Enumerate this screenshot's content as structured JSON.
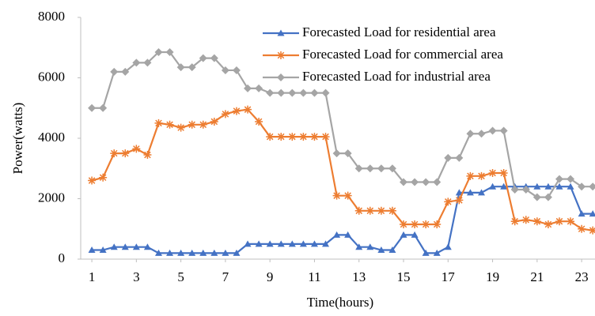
{
  "chart_data": {
    "type": "line",
    "x_label": "Time(hours)",
    "y_label": "Power(watts)",
    "x": [
      1,
      1.5,
      2,
      2.5,
      3,
      3.5,
      4,
      4.5,
      5,
      5.5,
      6,
      6.5,
      7,
      7.5,
      8,
      8.5,
      9,
      9.5,
      10,
      10.5,
      11,
      11.5,
      12,
      12.5,
      13,
      13.5,
      14,
      14.5,
      15,
      15.5,
      16,
      16.5,
      17,
      17.5,
      18,
      18.5,
      19,
      19.5,
      20,
      20.5,
      21,
      21.5,
      22,
      22.5,
      23,
      23.5
    ],
    "series": [
      {
        "name": "Forecasted Load for residential area",
        "color": "#4472c4",
        "marker": "triangle",
        "values": [
          300,
          300,
          400,
          400,
          400,
          400,
          200,
          200,
          200,
          200,
          200,
          200,
          200,
          200,
          500,
          500,
          500,
          500,
          500,
          500,
          500,
          500,
          800,
          800,
          400,
          400,
          300,
          300,
          800,
          800,
          200,
          200,
          400,
          2200,
          2200,
          2200,
          2400,
          2400,
          2400,
          2400,
          2400,
          2400,
          2400,
          2400,
          1500,
          1500
        ]
      },
      {
        "name": "Forecasted Load for commercial area",
        "color": "#ed7d31",
        "marker": "star",
        "values": [
          2600,
          2700,
          3500,
          3500,
          3650,
          3450,
          4500,
          4450,
          4350,
          4450,
          4450,
          4550,
          4800,
          4900,
          4950,
          4550,
          4050,
          4050,
          4050,
          4050,
          4050,
          4050,
          2100,
          2100,
          1600,
          1600,
          1600,
          1600,
          1150,
          1150,
          1150,
          1150,
          1900,
          1950,
          2750,
          2750,
          2850,
          2850,
          1250,
          1300,
          1250,
          1150,
          1250,
          1250,
          1000,
          950
        ]
      },
      {
        "name": "Forecasted Load for industrial area",
        "color": "#a5a5a5",
        "marker": "diamond",
        "values": [
          5000,
          5000,
          6200,
          6200,
          6500,
          6500,
          6850,
          6850,
          6350,
          6350,
          6650,
          6650,
          6250,
          6250,
          5650,
          5650,
          5500,
          5500,
          5500,
          5500,
          5500,
          5500,
          3500,
          3500,
          3000,
          3000,
          3000,
          3000,
          2550,
          2550,
          2550,
          2550,
          3350,
          3350,
          4150,
          4150,
          4250,
          4250,
          2300,
          2300,
          2050,
          2050,
          2650,
          2650,
          2400,
          2400
        ]
      }
    ],
    "xlim": [
      0.5,
      23.6
    ],
    "xticks": [
      1,
      3,
      5,
      7,
      9,
      11,
      13,
      15,
      17,
      19,
      21,
      23
    ],
    "ylim": [
      0,
      8000
    ],
    "yticks": [
      0,
      2000,
      4000,
      6000,
      8000
    ],
    "legend": "upper right"
  }
}
